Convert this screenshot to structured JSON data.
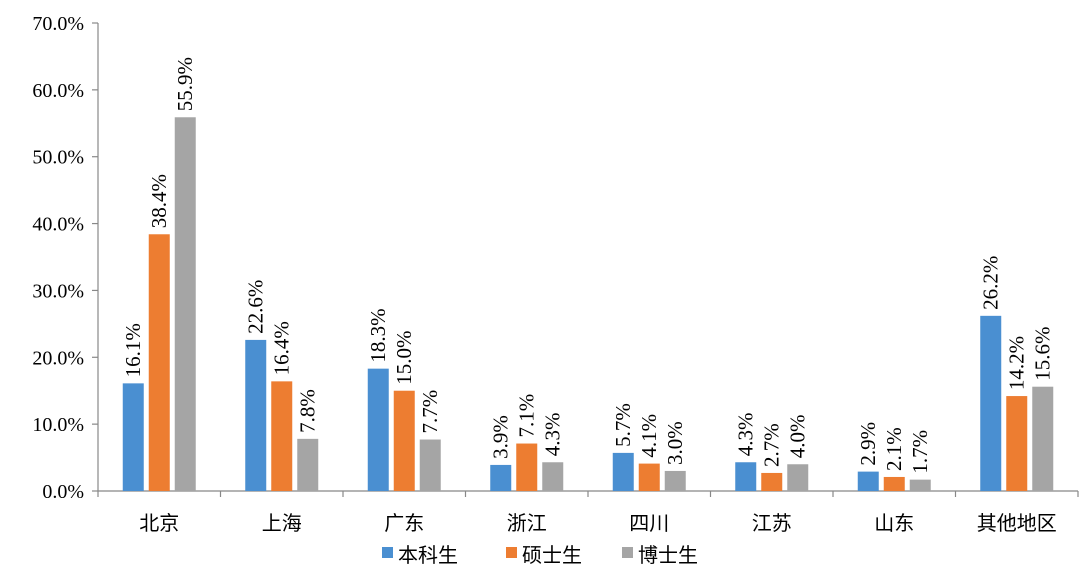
{
  "chart_data": {
    "type": "bar",
    "title": "",
    "xlabel": "",
    "ylabel": "",
    "ylim": [
      0,
      70
    ],
    "yticks": [
      0,
      10,
      20,
      30,
      40,
      50,
      60,
      70
    ],
    "ytick_labels": [
      "0.0%",
      "10.0%",
      "20.0%",
      "30.0%",
      "40.0%",
      "50.0%",
      "60.0%",
      "70.0%"
    ],
    "categories": [
      "北京",
      "上海",
      "广东",
      "浙江",
      "四川",
      "江苏",
      "山东",
      "其他地区"
    ],
    "series": [
      {
        "name": "本科生",
        "color": "#4a8fd1",
        "values": [
          16.1,
          22.6,
          18.3,
          3.9,
          5.7,
          4.3,
          2.9,
          26.2
        ],
        "labels": [
          "16.1%",
          "22.6%",
          "18.3%",
          "3.9%",
          "5.7%",
          "4.3%",
          "2.9%",
          "26.2%"
        ]
      },
      {
        "name": "硕士生",
        "color": "#ed7d31",
        "values": [
          38.4,
          16.4,
          15.0,
          7.1,
          4.1,
          2.7,
          2.1,
          14.2
        ],
        "labels": [
          "38.4%",
          "16.4%",
          "15.0%",
          "7.1%",
          "4.1%",
          "2.7%",
          "2.1%",
          "14.2%"
        ]
      },
      {
        "name": "博士生",
        "color": "#a5a5a5",
        "values": [
          55.9,
          7.8,
          7.7,
          4.3,
          3.0,
          4.0,
          1.7,
          15.6
        ],
        "labels": [
          "55.9%",
          "7.8%",
          "7.7%",
          "4.3%",
          "3.0%",
          "4.0%",
          "1.7%",
          "15.6%"
        ]
      }
    ],
    "legend_position": "bottom",
    "grid": false
  }
}
